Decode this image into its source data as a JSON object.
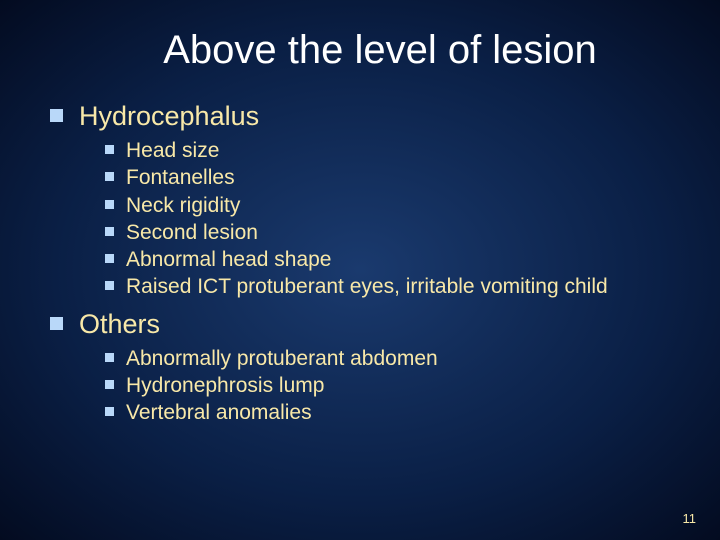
{
  "title": "Above the level of lesion",
  "sections": [
    {
      "heading": "Hydrocephalus",
      "items": [
        "Head size",
        "Fontanelles",
        "Neck rigidity",
        "Second lesion",
        "Abnormal head shape",
        "Raised ICT protuberant eyes, irritable vomiting child"
      ]
    },
    {
      "heading": "Others",
      "items": [
        "Abnormally protuberant abdomen",
        "Hydronephrosis lump",
        "Vertebral anomalies"
      ]
    }
  ],
  "page_number": "11",
  "colors": {
    "background_center": "#1a3a6e",
    "background_edge": "#030b20",
    "title_color": "#ffffff",
    "text_color": "#f8e8a8",
    "bullet_color": "#b9d8f9"
  },
  "typography": {
    "title_fontsize": 40,
    "level1_fontsize": 27,
    "level2_fontsize": 21,
    "page_number_fontsize": 13,
    "font_family": "Arial"
  }
}
